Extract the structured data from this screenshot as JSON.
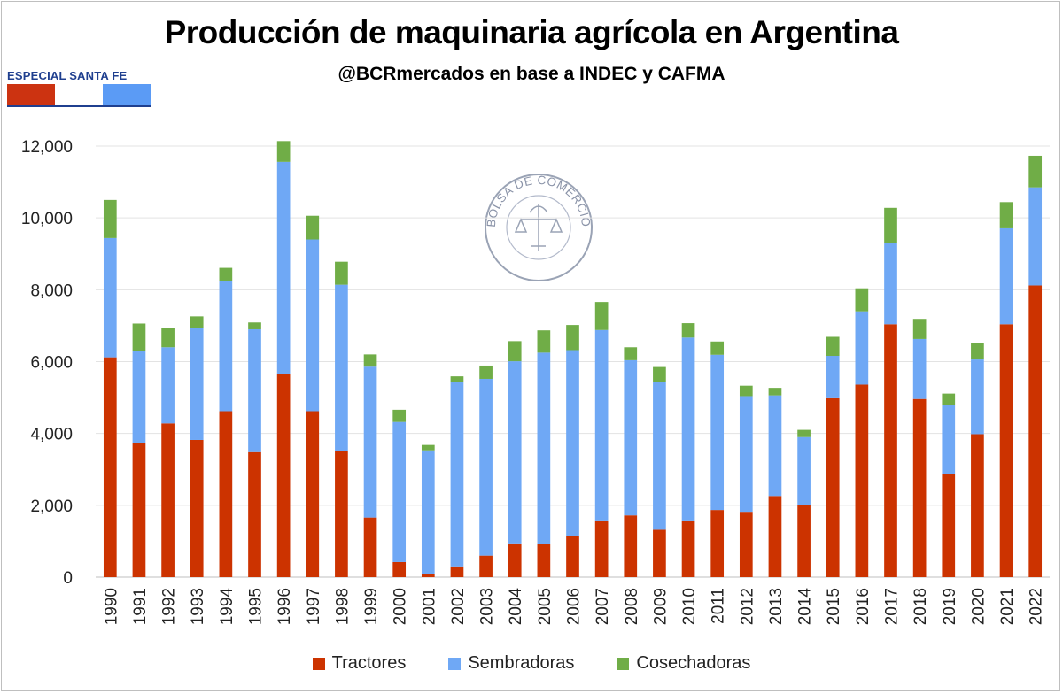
{
  "badge": {
    "label": "ESPECIAL SANTA FE",
    "colors": [
      "#cc3311",
      "#ffffff",
      "#5b9bf5"
    ]
  },
  "watermark": {
    "text": "BOLSA DE COMERCIO DE ROSARIO"
  },
  "colors": {
    "tractores": "#cc3300",
    "sembradoras": "#6fa8f5",
    "cosechadoras": "#70ad47"
  },
  "chart_data": {
    "type": "bar",
    "stacked": true,
    "title": "Producción de maquinaria agrícola en Argentina",
    "subtitle": "@BCRmercados en base a INDEC y CAFMA",
    "xlabel": "",
    "ylabel": "",
    "ylim": [
      0,
      12000
    ],
    "yticks": [
      0,
      2000,
      4000,
      6000,
      8000,
      10000,
      12000
    ],
    "ytick_labels": [
      "0",
      "2,000",
      "4,000",
      "6,000",
      "8,000",
      "10,000",
      "12,000"
    ],
    "legend_position": "bottom",
    "categories": [
      "1990",
      "1991",
      "1992",
      "1993",
      "1994",
      "1995",
      "1996",
      "1997",
      "1998",
      "1999",
      "2000",
      "2001",
      "2002",
      "2003",
      "2004",
      "2005",
      "2006",
      "2007",
      "2008",
      "2009",
      "2010",
      "2011",
      "2012",
      "2013",
      "2014",
      "2015",
      "2016",
      "2017",
      "2018",
      "2019",
      "2020",
      "2021",
      "2022"
    ],
    "series": [
      {
        "name": "Tractores",
        "values": [
          6120,
          3740,
          4280,
          3820,
          4620,
          3480,
          5660,
          4620,
          3500,
          1660,
          420,
          80,
          300,
          600,
          940,
          920,
          1150,
          1580,
          1720,
          1320,
          1580,
          1870,
          1820,
          2260,
          2020,
          4980,
          5360,
          7040,
          4960,
          2860,
          3980,
          7040,
          8120
        ]
      },
      {
        "name": "Sembradoras",
        "values": [
          3320,
          2560,
          2120,
          3120,
          3620,
          3420,
          5900,
          4780,
          4640,
          4200,
          3900,
          3450,
          5130,
          4920,
          5070,
          5330,
          5170,
          5300,
          4320,
          4110,
          5090,
          4320,
          3220,
          2800,
          1880,
          1180,
          2040,
          2250,
          1670,
          1920,
          2080,
          2670,
          2730
        ]
      },
      {
        "name": "Cosechadoras",
        "values": [
          1060,
          760,
          530,
          320,
          370,
          190,
          580,
          660,
          640,
          340,
          340,
          150,
          160,
          370,
          560,
          620,
          700,
          780,
          360,
          420,
          400,
          370,
          290,
          210,
          200,
          530,
          640,
          990,
          560,
          330,
          460,
          730,
          880
        ]
      }
    ]
  }
}
